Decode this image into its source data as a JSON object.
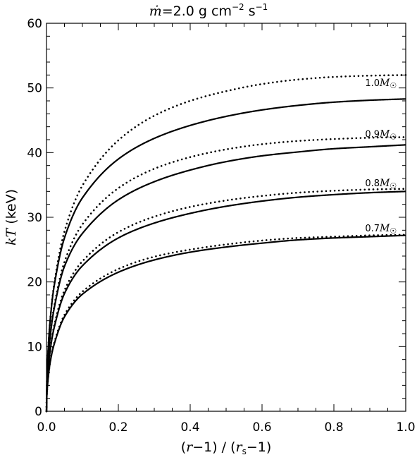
{
  "chart_data": {
    "type": "line",
    "title": {
      "mdot_symbol": "ṁ",
      "mdot_value": "=2.0 g cm",
      "exp1": "−2",
      "s_text": " s",
      "exp2": "−1"
    },
    "xlabel": "(r−1) / (rs−1)",
    "ylabel": "kT (keV)",
    "xlim": [
      0,
      1
    ],
    "ylim": [
      0,
      60
    ],
    "xticks": [
      0.0,
      0.2,
      0.4,
      0.6,
      0.8,
      1.0
    ],
    "xtick_labels": [
      "0.0",
      "0.2",
      "0.4",
      "0.6",
      "0.8",
      "1.0"
    ],
    "yticks": [
      0,
      10,
      20,
      30,
      40,
      50,
      60
    ],
    "ytick_labels": [
      "0",
      "10",
      "20",
      "30",
      "40",
      "50",
      "60"
    ],
    "grid": false,
    "x": [
      0.0,
      0.001,
      0.005,
      0.01,
      0.02,
      0.05,
      0.1,
      0.2,
      0.3,
      0.4,
      0.5,
      0.6,
      0.7,
      0.8,
      0.9,
      1.0
    ],
    "series": [
      {
        "name": "1.0M☉",
        "mass": "1.0",
        "style": "solid",
        "values": [
          0,
          4.5,
          9.9,
          13.9,
          18.9,
          26.8,
          33.0,
          39.0,
          42.2,
          44.2,
          45.6,
          46.6,
          47.3,
          47.8,
          48.1,
          48.3
        ]
      },
      {
        "name": "1.0M☉",
        "mass": "1.0",
        "style": "dotted",
        "values": [
          0,
          4.5,
          9.9,
          14.0,
          19.2,
          27.8,
          34.9,
          41.9,
          45.7,
          48.0,
          49.5,
          50.6,
          51.3,
          51.7,
          51.9,
          52.0
        ]
      },
      {
        "name": "0.9M☉",
        "mass": "0.9",
        "style": "solid",
        "values": [
          0,
          3.6,
          8.1,
          11.4,
          15.5,
          22.4,
          27.5,
          32.7,
          35.5,
          37.3,
          38.6,
          39.5,
          40.1,
          40.6,
          40.9,
          41.2
        ]
      },
      {
        "name": "0.9M☉",
        "mass": "0.9",
        "style": "dotted",
        "values": [
          0,
          3.6,
          8.1,
          11.5,
          15.8,
          23.1,
          28.9,
          34.5,
          37.5,
          39.3,
          40.5,
          41.3,
          41.8,
          42.1,
          42.3,
          42.4
        ]
      },
      {
        "name": "0.8M☉",
        "mass": "0.8",
        "style": "solid",
        "values": [
          0,
          3.0,
          6.6,
          9.3,
          12.6,
          18.2,
          22.5,
          26.8,
          29.1,
          30.6,
          31.7,
          32.5,
          33.1,
          33.5,
          33.8,
          34.0
        ]
      },
      {
        "name": "0.8M☉",
        "mass": "0.8",
        "style": "dotted",
        "values": [
          0,
          3.0,
          6.6,
          9.4,
          12.9,
          18.7,
          23.2,
          27.7,
          30.1,
          31.6,
          32.6,
          33.3,
          33.8,
          34.1,
          34.3,
          34.4
        ]
      },
      {
        "name": "0.7M☉",
        "mass": "0.7",
        "style": "solid",
        "values": [
          0,
          2.4,
          5.3,
          7.5,
          10.1,
          14.6,
          18.1,
          21.5,
          23.4,
          24.6,
          25.4,
          26.0,
          26.5,
          26.8,
          27.0,
          27.2
        ]
      },
      {
        "name": "0.7M☉",
        "mass": "0.7",
        "style": "dotted",
        "values": [
          0,
          2.4,
          5.3,
          7.5,
          10.3,
          14.9,
          18.5,
          22.0,
          23.9,
          25.0,
          25.8,
          26.4,
          26.8,
          27.0,
          27.2,
          27.3
        ]
      }
    ],
    "annotations": [
      {
        "mass": "1.0",
        "symbol": "M",
        "sun": "☉",
        "x": 0.975,
        "y": 50.3
      },
      {
        "mass": "0.9",
        "symbol": "M",
        "sun": "☉",
        "x": 0.975,
        "y": 42.4
      },
      {
        "mass": "0.8",
        "symbol": "M",
        "sun": "☉",
        "x": 0.975,
        "y": 34.8
      },
      {
        "mass": "0.7",
        "symbol": "M",
        "sun": "☉",
        "x": 0.975,
        "y": 27.8
      }
    ]
  }
}
